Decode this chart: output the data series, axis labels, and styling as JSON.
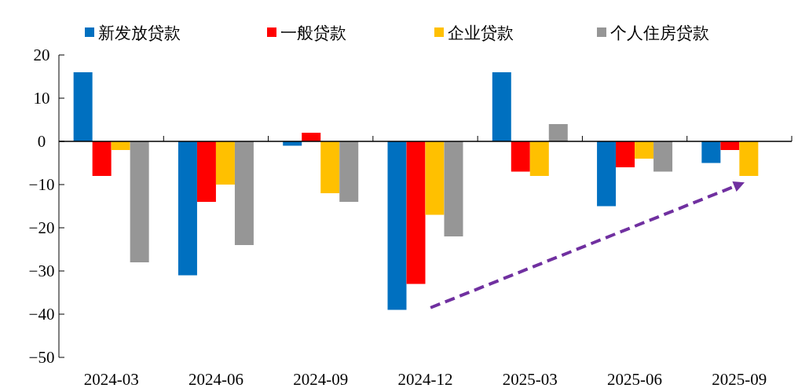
{
  "chart_data": {
    "type": "bar",
    "categories": [
      "2024-03",
      "2024-06",
      "2024-09",
      "2024-12",
      "2025-03",
      "2025-06",
      "2025-09"
    ],
    "series": [
      {
        "name": "新发放贷款",
        "color": "#0070c0",
        "values": [
          16,
          -31,
          -1,
          -39,
          16,
          -15,
          -5
        ]
      },
      {
        "name": "一般贷款",
        "color": "#ff0000",
        "values": [
          -8,
          -14,
          2,
          -33,
          -7,
          -6,
          -2
        ]
      },
      {
        "name": "企业贷款",
        "color": "#ffc000",
        "values": [
          -2,
          -10,
          -12,
          -17,
          -8,
          -4,
          -8
        ]
      },
      {
        "name": "个人住房贷款",
        "color": "#969696",
        "values": [
          -28,
          -24,
          -14,
          -22,
          4,
          -7,
          null
        ]
      }
    ],
    "ylim": [
      -50,
      20
    ],
    "yticks": [
      -50,
      -40,
      -30,
      -20,
      -10,
      0,
      10,
      20
    ],
    "legend": "top"
  }
}
